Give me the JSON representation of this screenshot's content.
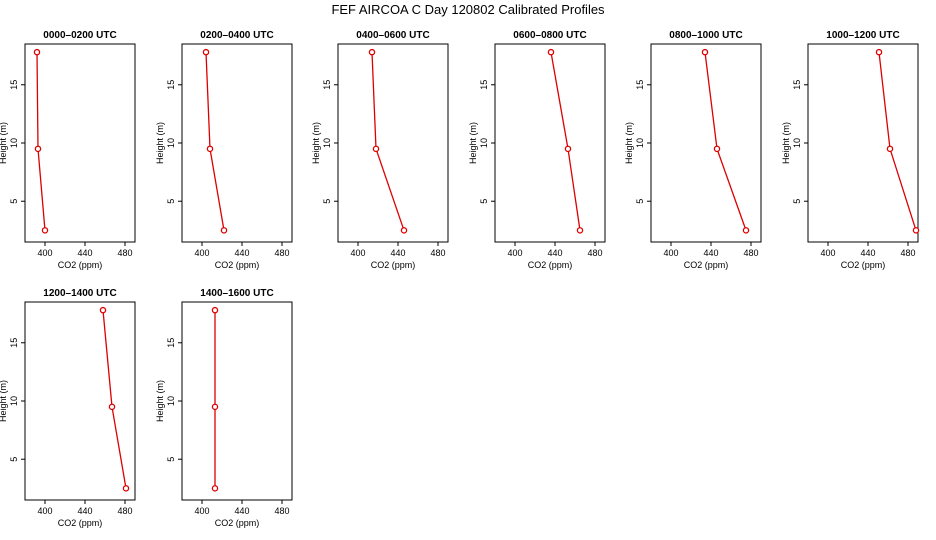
{
  "figure": {
    "title": "FEF AIRCOA C  Day 120802  Calibrated Profiles",
    "series_color": "#dd0000"
  },
  "chart_data": [
    {
      "type": "line",
      "title": "0000–0200 UTC",
      "xlabel": "CO2 (ppm)",
      "ylabel": "Height (m)",
      "xlim": [
        380,
        490
      ],
      "ylim": [
        1.5,
        18.5
      ],
      "xticks": [
        400,
        440,
        480
      ],
      "xtick_labels": [
        "400",
        "440",
        "480"
      ],
      "yticks": [
        5,
        10,
        15
      ],
      "ytick_labels": [
        "5",
        "10",
        "15"
      ],
      "grid": false,
      "points": [
        {
          "x": 392,
          "y": 17.8
        },
        {
          "x": 393,
          "y": 9.5
        },
        {
          "x": 400,
          "y": 2.5
        }
      ]
    },
    {
      "type": "line",
      "title": "0200–0400 UTC",
      "xlabel": "CO2 (ppm)",
      "ylabel": "Height (m)",
      "xlim": [
        380,
        490
      ],
      "ylim": [
        1.5,
        18.5
      ],
      "xticks": [
        400,
        440,
        480
      ],
      "xtick_labels": [
        "400",
        "440",
        "480"
      ],
      "yticks": [
        5,
        10,
        15
      ],
      "ytick_labels": [
        "5",
        "10",
        "15"
      ],
      "grid": false,
      "points": [
        {
          "x": 404,
          "y": 17.8
        },
        {
          "x": 408,
          "y": 9.5
        },
        {
          "x": 422,
          "y": 2.5
        }
      ]
    },
    {
      "type": "line",
      "title": "0400–0600 UTC",
      "xlabel": "CO2 (ppm)",
      "ylabel": "Height (m)",
      "xlim": [
        380,
        490
      ],
      "ylim": [
        1.5,
        18.5
      ],
      "xticks": [
        400,
        440,
        480
      ],
      "xtick_labels": [
        "400",
        "440",
        "480"
      ],
      "yticks": [
        5,
        10,
        15
      ],
      "ytick_labels": [
        "5",
        "10",
        "15"
      ],
      "grid": false,
      "points": [
        {
          "x": 414,
          "y": 17.8
        },
        {
          "x": 418,
          "y": 9.5
        },
        {
          "x": 446,
          "y": 2.5
        }
      ]
    },
    {
      "type": "line",
      "title": "0600–0800 UTC",
      "xlabel": "CO2 (ppm)",
      "ylabel": "Height (m)",
      "xlim": [
        380,
        490
      ],
      "ylim": [
        1.5,
        18.5
      ],
      "xticks": [
        400,
        440,
        480
      ],
      "xtick_labels": [
        "400",
        "440",
        "480"
      ],
      "yticks": [
        5,
        10,
        15
      ],
      "ytick_labels": [
        "5",
        "10",
        "15"
      ],
      "grid": false,
      "points": [
        {
          "x": 436,
          "y": 17.8
        },
        {
          "x": 453,
          "y": 9.5
        },
        {
          "x": 465,
          "y": 2.5
        }
      ]
    },
    {
      "type": "line",
      "title": "0800–1000 UTC",
      "xlabel": "CO2 (ppm)",
      "ylabel": "Height (m)",
      "xlim": [
        380,
        490
      ],
      "ylim": [
        1.5,
        18.5
      ],
      "xticks": [
        400,
        440,
        480
      ],
      "xtick_labels": [
        "400",
        "440",
        "480"
      ],
      "yticks": [
        5,
        10,
        15
      ],
      "ytick_labels": [
        "5",
        "10",
        "15"
      ],
      "grid": false,
      "points": [
        {
          "x": 434,
          "y": 17.8
        },
        {
          "x": 446,
          "y": 9.5
        },
        {
          "x": 475,
          "y": 2.5
        }
      ]
    },
    {
      "type": "line",
      "title": "1000–1200 UTC",
      "xlabel": "CO2 (ppm)",
      "ylabel": "Height (m)",
      "xlim": [
        380,
        490
      ],
      "ylim": [
        1.5,
        18.5
      ],
      "xticks": [
        400,
        440,
        480
      ],
      "xtick_labels": [
        "400",
        "440",
        "480"
      ],
      "yticks": [
        5,
        10,
        15
      ],
      "ytick_labels": [
        "5",
        "10",
        "15"
      ],
      "grid": false,
      "points": [
        {
          "x": 451,
          "y": 17.8
        },
        {
          "x": 462,
          "y": 9.5
        },
        {
          "x": 488,
          "y": 2.5
        }
      ]
    },
    {
      "type": "line",
      "title": "1200–1400 UTC",
      "xlabel": "CO2 (ppm)",
      "ylabel": "Height (m)",
      "xlim": [
        380,
        490
      ],
      "ylim": [
        1.5,
        18.5
      ],
      "xticks": [
        400,
        440,
        480
      ],
      "xtick_labels": [
        "400",
        "440",
        "480"
      ],
      "yticks": [
        5,
        10,
        15
      ],
      "ytick_labels": [
        "5",
        "10",
        "15"
      ],
      "grid": false,
      "points": [
        {
          "x": 458,
          "y": 17.8
        },
        {
          "x": 467,
          "y": 9.5
        },
        {
          "x": 481,
          "y": 2.5
        }
      ]
    },
    {
      "type": "line",
      "title": "1400–1600 UTC",
      "xlabel": "CO2 (ppm)",
      "ylabel": "Height (m)",
      "xlim": [
        380,
        490
      ],
      "ylim": [
        1.5,
        18.5
      ],
      "xticks": [
        400,
        440,
        480
      ],
      "xtick_labels": [
        "400",
        "440",
        "480"
      ],
      "yticks": [
        5,
        10,
        15
      ],
      "ytick_labels": [
        "5",
        "10",
        "15"
      ],
      "grid": false,
      "points": [
        {
          "x": 413,
          "y": 17.8
        },
        {
          "x": 413,
          "y": 9.5
        },
        {
          "x": 413,
          "y": 2.5
        }
      ]
    }
  ]
}
